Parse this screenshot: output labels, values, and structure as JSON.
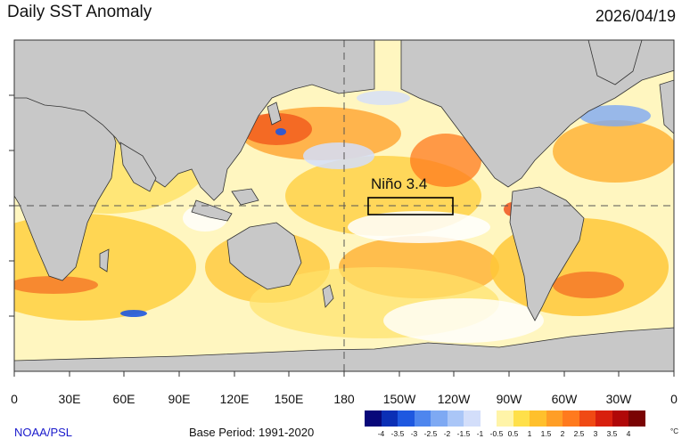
{
  "header": {
    "title": "Daily SST Anomaly",
    "date": "2026/04/19"
  },
  "map": {
    "region_label": "Niño 3.4",
    "lon_labels": [
      "0",
      "30E",
      "60E",
      "90E",
      "120E",
      "150E",
      "180",
      "150W",
      "120W",
      "90W",
      "60W",
      "30W",
      "0"
    ]
  },
  "footer": {
    "credit": "NOAA/PSL",
    "base_period": "Base Period: 1991-2020"
  },
  "colorbar": {
    "labels": [
      "-4",
      "-3.5",
      "-3",
      "-2.5",
      "-2",
      "-1.5",
      "-1",
      "-0.5",
      "0.5",
      "1",
      "1.5",
      "2",
      "2.5",
      "3",
      "3.5",
      "4"
    ],
    "unit": "°C",
    "colors": [
      "#08087a",
      "#0b2fb5",
      "#1e58e0",
      "#4e86ee",
      "#7ea9f3",
      "#aac6f7",
      "#d3defa",
      "#ffffff",
      "#fff4a8",
      "#ffe04a",
      "#ffc02c",
      "#ff9e26",
      "#ff7a1e",
      "#f04a14",
      "#d8200e",
      "#b00808",
      "#7a0404"
    ]
  },
  "colors": {
    "land": "#c8c8c8",
    "warm_light": "#fff0a0",
    "warm_mid": "#ffc838",
    "warm_hot": "#ff7a1e",
    "cool": "#aab8ee"
  }
}
